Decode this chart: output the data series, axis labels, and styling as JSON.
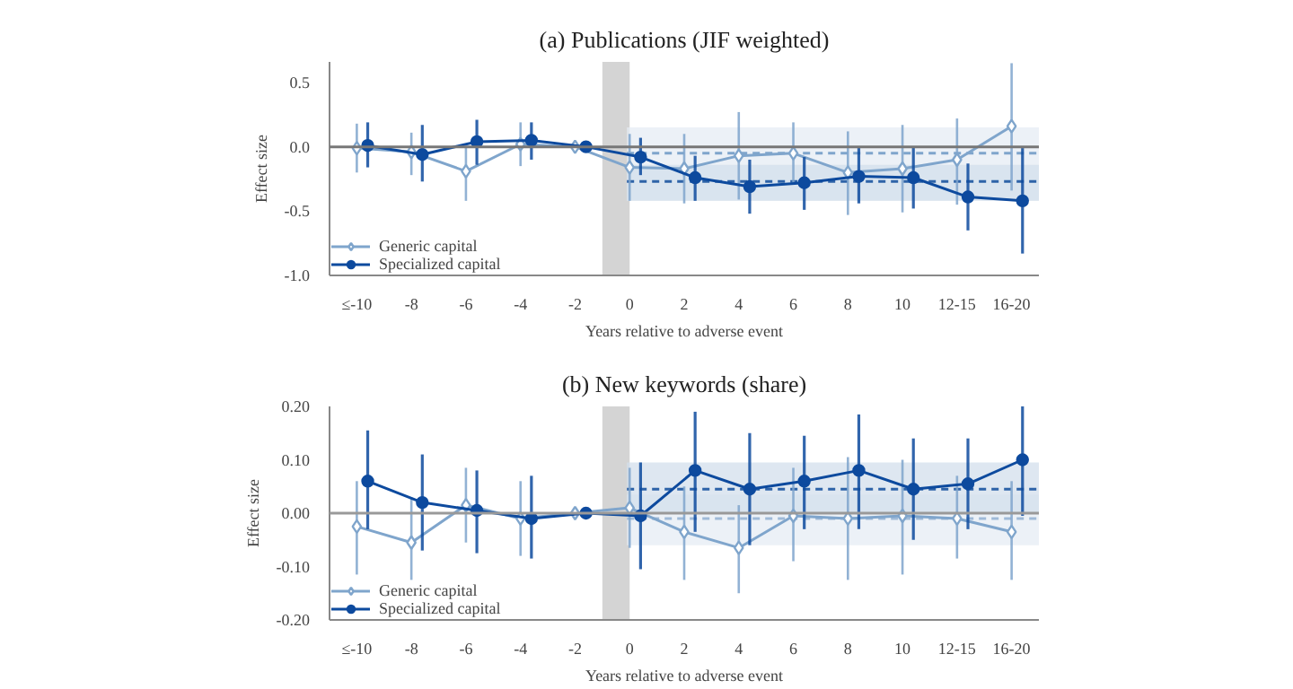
{
  "chart_data": [
    {
      "type": "line",
      "title": "(a) Publications (JIF weighted)",
      "xlabel": "Years relative to adverse event",
      "ylabel": "Effect size",
      "x": [
        -10,
        -8,
        -6,
        -4,
        -2,
        0,
        2,
        4,
        6,
        8,
        10,
        12,
        14
      ],
      "xlim": [
        -11,
        15
      ],
      "xticks": [
        {
          "value": -10,
          "label": "≤-10"
        },
        -8,
        -6,
        -4,
        -2,
        0,
        2,
        4,
        6,
        8,
        10,
        {
          "value": 12,
          "label": "12-15"
        },
        {
          "value": 14,
          "label": "16-20"
        }
      ],
      "ylim": [
        -1.0,
        0.66
      ],
      "yticks": [
        {
          "value": -1.0,
          "label": "-1.0"
        },
        {
          "value": -0.5,
          "label": "-0.5"
        },
        {
          "value": 0.0,
          "label": "0.0"
        },
        {
          "value": 0.5,
          "label": "0.5"
        }
      ],
      "series": [
        {
          "name": "Generic capital",
          "color": "#7fa5cc",
          "marker": "diamond",
          "values": [
            -0.01,
            -0.04,
            -0.19,
            0.02,
            0.0,
            -0.16,
            -0.17,
            -0.07,
            -0.05,
            -0.2,
            -0.17,
            -0.1,
            0.16
          ],
          "errors": [
            [
              -0.2,
              0.18
            ],
            [
              -0.22,
              0.11
            ],
            [
              -0.42,
              0.0
            ],
            [
              -0.15,
              0.19
            ],
            null,
            [
              -0.42,
              0.1
            ],
            [
              -0.44,
              0.1
            ],
            [
              -0.41,
              0.27
            ],
            [
              -0.29,
              0.19
            ],
            [
              -0.53,
              0.12
            ],
            [
              -0.51,
              0.17
            ],
            [
              -0.45,
              0.22
            ],
            [
              -0.34,
              0.65
            ]
          ]
        },
        {
          "name": "Specialized capital",
          "color": "#0d4a9e",
          "marker": "circle",
          "x": [
            -9.6,
            -7.6,
            -5.6,
            -3.6,
            -1.6,
            0.4,
            2.4,
            4.4,
            6.4,
            8.4,
            10.4,
            12.4,
            14.4
          ],
          "values": [
            0.01,
            -0.06,
            0.04,
            0.05,
            0.0,
            -0.08,
            -0.24,
            -0.31,
            -0.28,
            -0.23,
            -0.24,
            -0.39,
            -0.42
          ],
          "errors": [
            [
              -0.16,
              0.19
            ],
            [
              -0.27,
              0.17
            ],
            [
              -0.14,
              0.21
            ],
            [
              -0.1,
              0.19
            ],
            null,
            [
              -0.22,
              0.07
            ],
            [
              -0.42,
              -0.07
            ],
            [
              -0.52,
              -0.1
            ],
            [
              -0.49,
              -0.08
            ],
            [
              -0.44,
              -0.01
            ],
            [
              -0.48,
              0.0
            ],
            [
              -0.65,
              -0.13
            ],
            [
              -0.83,
              -0.01
            ]
          ]
        }
      ],
      "ref_lines": [
        {
          "axis": "y",
          "value": 0.0,
          "color": "#777777",
          "line_style": "solid"
        },
        {
          "axis": "y",
          "value": -0.05,
          "color": "#7fa5cc",
          "line_style": "dashed"
        },
        {
          "axis": "y",
          "value": -0.27,
          "color": "#2e63a8",
          "line_style": "dashed"
        }
      ],
      "bands": [
        {
          "axis": "x",
          "from": -1,
          "to": 0,
          "color": "#d4d4d4"
        },
        {
          "axis": "y",
          "from": -0.42,
          "to": 0.15,
          "color": "#e6ecf4"
        },
        {
          "axis": "y",
          "from": -0.42,
          "to": -0.14,
          "color": "#d3dfec"
        }
      ],
      "legend": "bottom left",
      "grid": false
    },
    {
      "type": "line",
      "title": "(b) New keywords (share)",
      "xlabel": "Years relative to adverse event",
      "ylabel": "Effect size",
      "x": [
        -10,
        -8,
        -6,
        -4,
        -2,
        0,
        2,
        4,
        6,
        8,
        10,
        12,
        14
      ],
      "xlim": [
        -11,
        15
      ],
      "xticks": [
        {
          "value": -10,
          "label": "≤-10"
        },
        -8,
        -6,
        -4,
        -2,
        0,
        2,
        4,
        6,
        8,
        10,
        {
          "value": 12,
          "label": "12-15"
        },
        {
          "value": 14,
          "label": "16-20"
        }
      ],
      "ylim": [
        -0.2,
        0.2
      ],
      "yticks": [
        {
          "value": -0.2,
          "label": "-0.20"
        },
        {
          "value": -0.1,
          "label": "-0.10"
        },
        {
          "value": 0.0,
          "label": "0.00"
        },
        {
          "value": 0.1,
          "label": "0.10"
        },
        {
          "value": 0.2,
          "label": "0.20"
        }
      ],
      "series": [
        {
          "name": "Generic capital",
          "color": "#7fa5cc",
          "marker": "diamond",
          "values": [
            -0.025,
            -0.055,
            0.015,
            -0.01,
            0.0,
            0.01,
            -0.035,
            -0.065,
            -0.005,
            -0.01,
            -0.005,
            -0.01,
            -0.035
          ],
          "errors": [
            [
              -0.115,
              0.06
            ],
            [
              -0.125,
              0.03
            ],
            [
              -0.055,
              0.085
            ],
            [
              -0.08,
              0.06
            ],
            null,
            [
              -0.065,
              0.085
            ],
            [
              -0.125,
              0.05
            ],
            [
              -0.15,
              0.015
            ],
            [
              -0.09,
              0.085
            ],
            [
              -0.125,
              0.105
            ],
            [
              -0.115,
              0.1
            ],
            [
              -0.085,
              0.07
            ],
            [
              -0.125,
              0.06
            ]
          ]
        },
        {
          "name": "Specialized capital",
          "color": "#0d4a9e",
          "marker": "circle",
          "x": [
            -9.6,
            -7.6,
            -5.6,
            -3.6,
            -1.6,
            0.4,
            2.4,
            4.4,
            6.4,
            8.4,
            10.4,
            12.4,
            14.4
          ],
          "values": [
            0.06,
            0.02,
            0.005,
            -0.01,
            0.0,
            -0.005,
            0.08,
            0.045,
            0.06,
            0.08,
            0.045,
            0.055,
            0.1
          ],
          "errors": [
            [
              -0.03,
              0.155
            ],
            [
              -0.07,
              0.11
            ],
            [
              -0.075,
              0.08
            ],
            [
              -0.085,
              0.07
            ],
            null,
            [
              -0.105,
              0.095
            ],
            [
              -0.035,
              0.19
            ],
            [
              -0.06,
              0.15
            ],
            [
              -0.03,
              0.145
            ],
            [
              -0.03,
              0.185
            ],
            [
              -0.05,
              0.14
            ],
            [
              -0.03,
              0.14
            ],
            [
              -0.005,
              0.2
            ]
          ]
        }
      ],
      "ref_lines": [
        {
          "axis": "y",
          "value": 0.0,
          "color": "#999999",
          "line_style": "solid"
        },
        {
          "axis": "y",
          "value": -0.01,
          "color": "#9fbad8",
          "line_style": "dashed"
        },
        {
          "axis": "y",
          "value": 0.045,
          "color": "#2e63a8",
          "line_style": "dashed"
        }
      ],
      "bands": [
        {
          "axis": "x",
          "from": -1,
          "to": 0,
          "color": "#d4d4d4"
        },
        {
          "axis": "y",
          "from": -0.06,
          "to": 0.035,
          "color": "#e6ecf4"
        },
        {
          "axis": "y",
          "from": 0.0,
          "to": 0.095,
          "color": "#d3dfec"
        }
      ],
      "legend": "bottom left",
      "grid": false
    }
  ]
}
